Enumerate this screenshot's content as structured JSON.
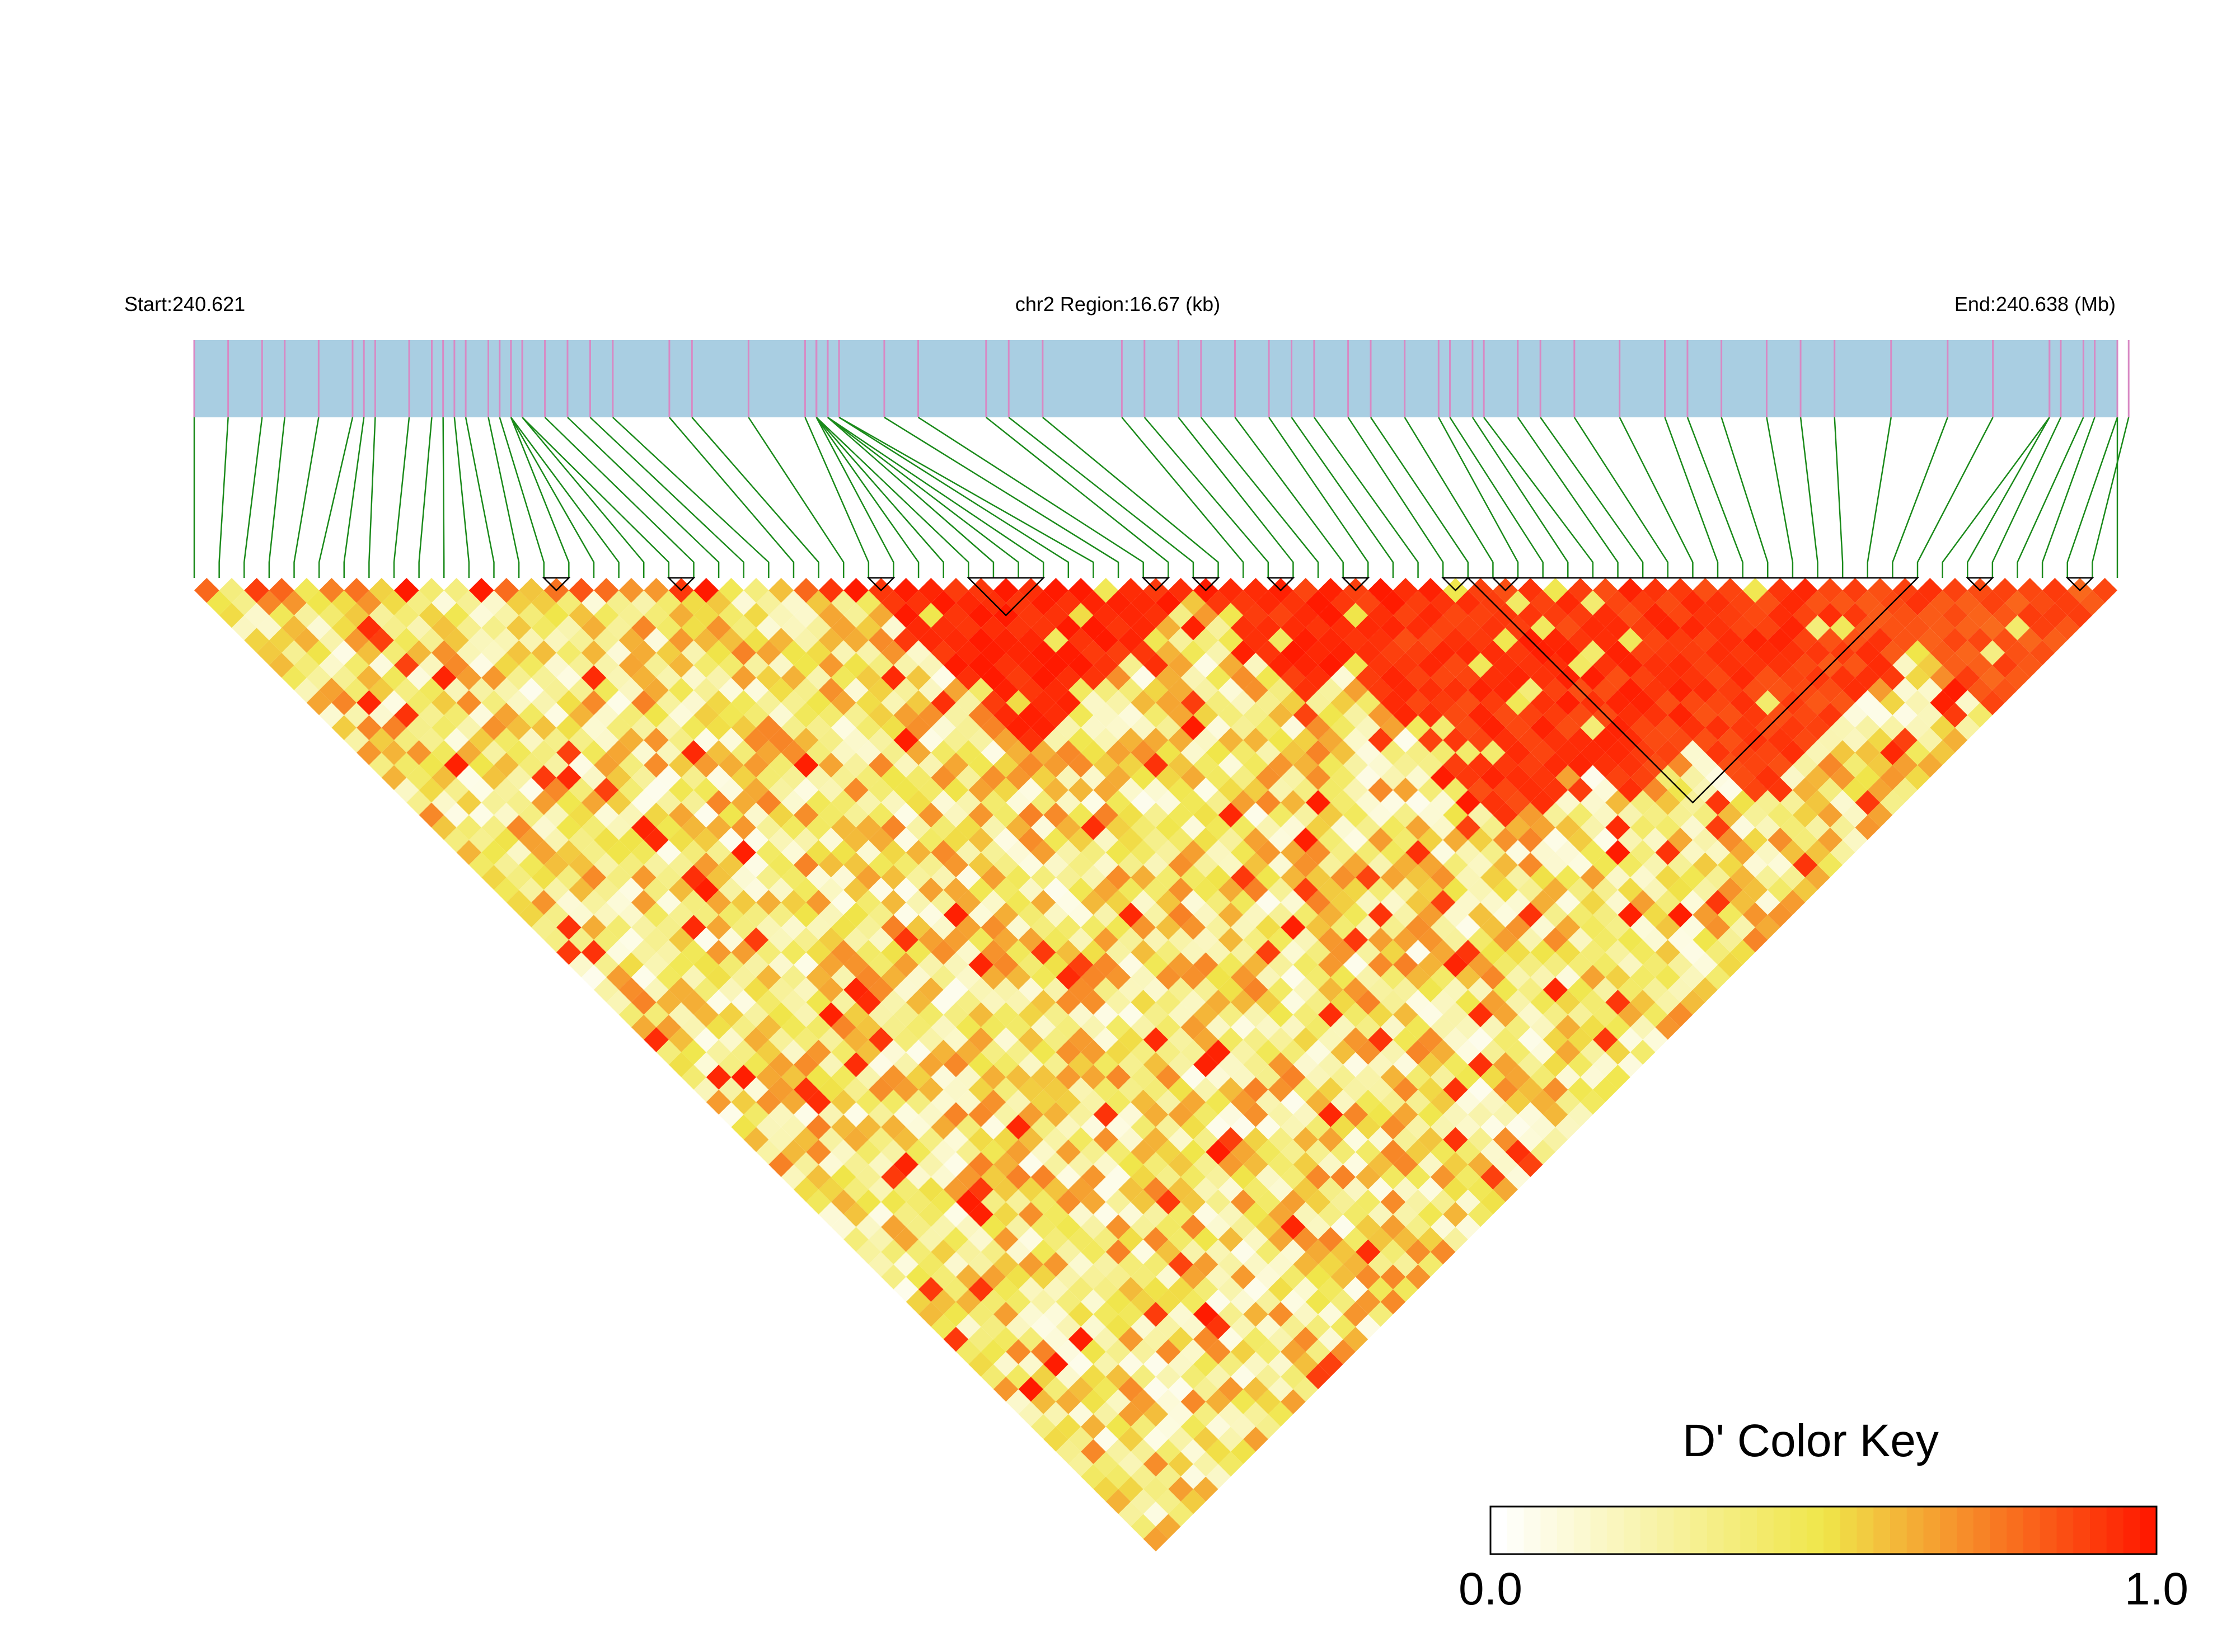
{
  "header": {
    "start_label": "Start:240.621",
    "region_label": "chr2 Region:16.67 (kb)",
    "end_label": "End:240.638 (Mb)"
  },
  "colors": {
    "track_fill": "#a9cee2",
    "connector_line": "#1a8a1a",
    "snp_tick": "#d889c4",
    "scale_low": "#ffffff",
    "scale_mid": "#f0e64a",
    "scale_high": "#ff1a00",
    "block_outline": "#000000"
  },
  "chart_data": {
    "type": "heatmap",
    "subtype": "linkage-disequilibrium triangle",
    "metric": "D'",
    "chromosome": "chr2",
    "region_start_mb": 240.621,
    "region_end_mb": 240.638,
    "region_size_kb": 16.67,
    "n_snps": 78,
    "snp_positions_mb": [
      240.621,
      240.6213,
      240.6216,
      240.6218,
      240.6221,
      240.6224,
      240.6225,
      240.6226,
      240.6229,
      240.6231,
      240.6232,
      240.6233,
      240.6234,
      240.6236,
      240.6237,
      240.6238,
      240.6238,
      240.6238,
      240.6239,
      240.6239,
      240.6241,
      240.6243,
      240.6245,
      240.6247,
      240.6252,
      240.6254,
      240.6259,
      240.6264,
      240.6265,
      240.6265,
      240.6265,
      240.6265,
      240.6266,
      240.6266,
      240.6266,
      240.6267,
      240.6267,
      240.6271,
      240.6274,
      240.628,
      240.6282,
      240.6285,
      240.6292,
      240.6294,
      240.6297,
      240.6299,
      240.6302,
      240.6305,
      240.6307,
      240.6309,
      240.6312,
      240.6314,
      240.6317,
      240.632,
      240.6321,
      240.6323,
      240.6324,
      240.6327,
      240.6329,
      240.6332,
      240.6336,
      240.634,
      240.6342,
      240.6345,
      240.6349,
      240.6352,
      240.6355,
      240.636,
      240.6365,
      240.6369,
      240.6374,
      240.6374,
      240.6375,
      240.6377,
      240.6378,
      240.638,
      240.6381,
      240.638
    ],
    "high_ld_regions": [
      {
        "snps": [
          27,
          40
        ],
        "dprime": 0.97
      },
      {
        "snps": [
          40,
          49
        ],
        "dprime": 0.95
      },
      {
        "snps": [
          43,
          62
        ],
        "dprime": 0.93
      },
      {
        "snps": [
          49,
          66
        ],
        "dprime": 0.92
      },
      {
        "snps": [
          54,
          71
        ],
        "dprime": 0.9
      },
      {
        "snps": [
          67,
          77
        ],
        "dprime": 0.86
      }
    ],
    "background_dprime": 0.4,
    "blocks": [
      [
        14,
        15
      ],
      [
        19,
        20
      ],
      [
        27,
        28
      ],
      [
        31,
        34
      ],
      [
        38,
        39
      ],
      [
        40,
        41
      ],
      [
        43,
        44
      ],
      [
        46,
        47
      ],
      [
        50,
        51
      ],
      [
        52,
        53
      ],
      [
        51,
        69
      ],
      [
        71,
        72
      ],
      [
        75,
        76
      ]
    ],
    "color_key": {
      "title": "D' Color Key",
      "min_label": "0.0",
      "max_label": "1.0",
      "range": [
        0.0,
        1.0
      ],
      "steps": 40
    }
  }
}
